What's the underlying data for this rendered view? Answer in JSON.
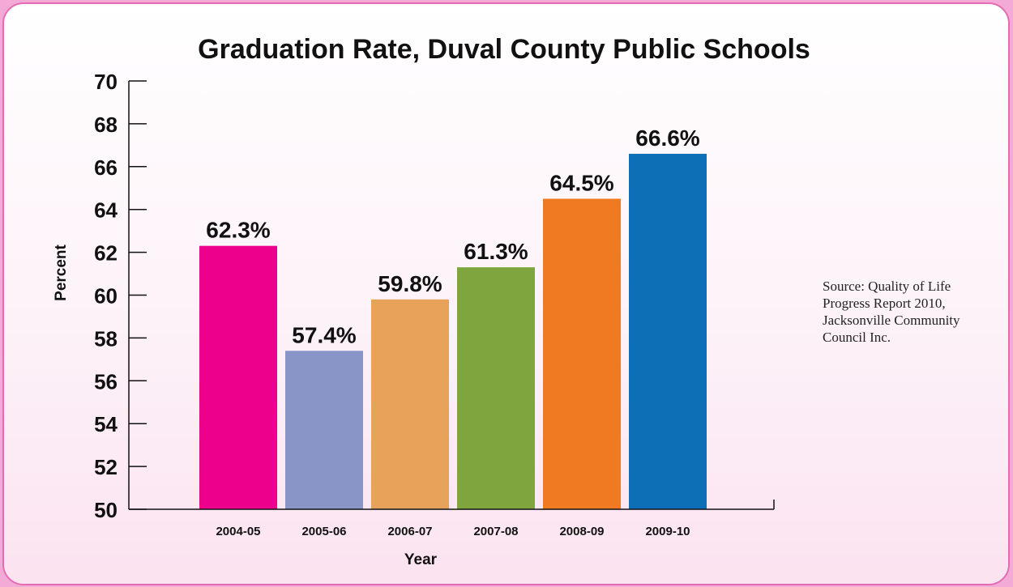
{
  "chart_data": {
    "type": "bar",
    "title": "Graduation Rate, Duval County Public Schools",
    "xlabel": "Year",
    "ylabel": "Percent",
    "categories": [
      "2004-05",
      "2005-06",
      "2006-07",
      "2007-08",
      "2008-09",
      "2009-10"
    ],
    "values": [
      62.3,
      57.4,
      59.8,
      61.3,
      64.5,
      66.6
    ],
    "data_labels": [
      "62.3%",
      "57.4%",
      "59.8%",
      "61.3%",
      "64.5%",
      "66.6%"
    ],
    "colors": [
      "#ec008c",
      "#8994c7",
      "#e8a35b",
      "#7ea53e",
      "#f07a22",
      "#0d70b6"
    ],
    "ylim": [
      50,
      70
    ],
    "yticks": [
      50,
      52,
      54,
      56,
      58,
      60,
      62,
      64,
      66,
      68,
      70
    ],
    "grid": false,
    "legend": "none"
  },
  "source_note": "Source: Quality of Life Progress Report 2010, Jacksonville Community Council Inc."
}
